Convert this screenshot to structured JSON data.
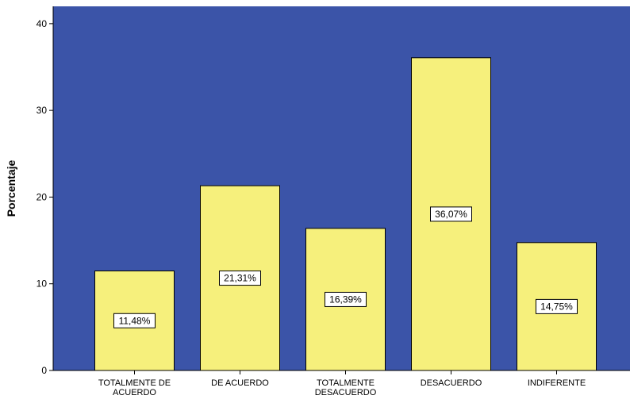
{
  "chart_data": {
    "type": "bar",
    "categories": [
      [
        "TOTALMENTE DE",
        "ACUERDO"
      ],
      [
        "DE ACUERDO"
      ],
      [
        "TOTALMENTE",
        "DESACUERDO"
      ],
      [
        "DESACUERDO"
      ],
      [
        "INDIFERENTE"
      ]
    ],
    "values": [
      11.48,
      21.31,
      16.39,
      36.07,
      14.75
    ],
    "data_labels": [
      "11,48%",
      "21,31%",
      "16,39%",
      "36,07%",
      "14,75%"
    ],
    "title": "",
    "xlabel": "",
    "ylabel": "Porcentaje",
    "ylim": [
      0,
      42
    ],
    "yticks": [
      0,
      10,
      20,
      30,
      40
    ],
    "grid": false,
    "colors": {
      "plot_background": "#3b54a8",
      "bar_fill": "#f6f07c",
      "bar_stroke": "#000000"
    }
  }
}
